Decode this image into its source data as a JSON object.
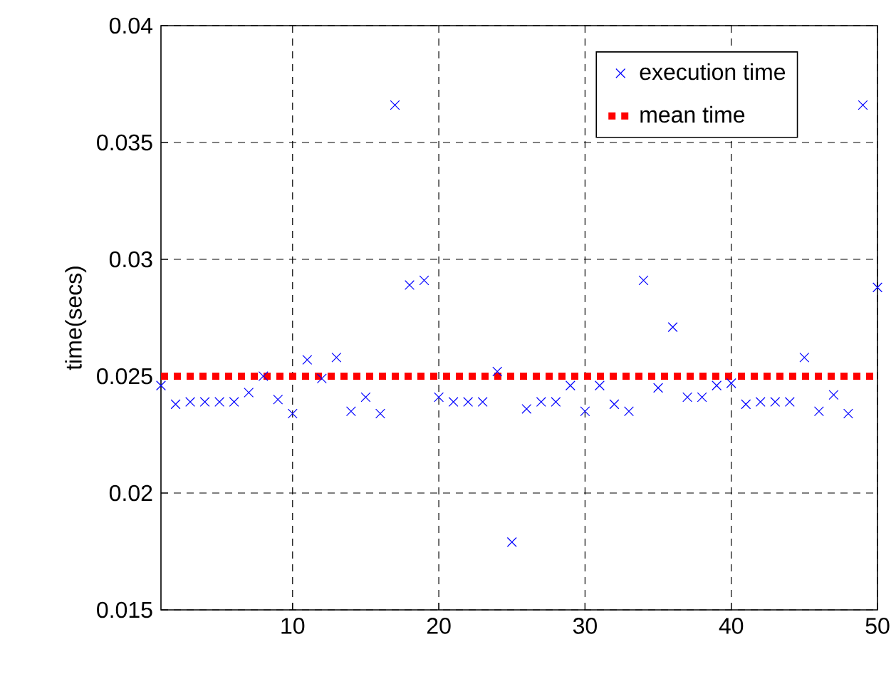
{
  "chart_data": {
    "type": "scatter",
    "ylabel": "time(secs)",
    "x": [
      1,
      2,
      3,
      4,
      5,
      6,
      7,
      8,
      9,
      10,
      11,
      12,
      13,
      14,
      15,
      16,
      17,
      18,
      19,
      20,
      21,
      22,
      23,
      24,
      25,
      26,
      27,
      28,
      29,
      30,
      31,
      32,
      33,
      34,
      35,
      36,
      37,
      38,
      39,
      40,
      41,
      42,
      43,
      44,
      45,
      46,
      47,
      48,
      49,
      50
    ],
    "series": [
      {
        "name": "execution time",
        "color": "#0000ff",
        "marker": "cross",
        "values": [
          0.0246,
          0.0238,
          0.0239,
          0.0239,
          0.0239,
          0.0239,
          0.0243,
          0.025,
          0.024,
          0.0234,
          0.0257,
          0.0249,
          0.0258,
          0.0235,
          0.0241,
          0.0234,
          0.0366,
          0.0289,
          0.0291,
          0.0241,
          0.0239,
          0.0239,
          0.0239,
          0.0252,
          0.0179,
          0.0236,
          0.0239,
          0.0239,
          0.0246,
          0.0235,
          0.0246,
          0.0238,
          0.0235,
          0.0291,
          0.0245,
          0.0271,
          0.0241,
          0.0241,
          0.0246,
          0.0247,
          0.0238,
          0.0239,
          0.0239,
          0.0239,
          0.0258,
          0.0235,
          0.0242,
          0.0234,
          0.0366,
          0.0288
        ]
      }
    ],
    "ref_lines": [
      {
        "axis": "y",
        "value": 0.025,
        "label": "mean time",
        "color": "#ff0000",
        "line_style": "dotted"
      }
    ],
    "xlim": [
      1,
      50
    ],
    "ylim": [
      0.015,
      0.04
    ],
    "xticks": [
      10,
      20,
      30,
      40,
      50
    ],
    "yticks": [
      0.015,
      0.02,
      0.025,
      0.03,
      0.035,
      0.04
    ],
    "grid": true,
    "legend": "top right"
  }
}
